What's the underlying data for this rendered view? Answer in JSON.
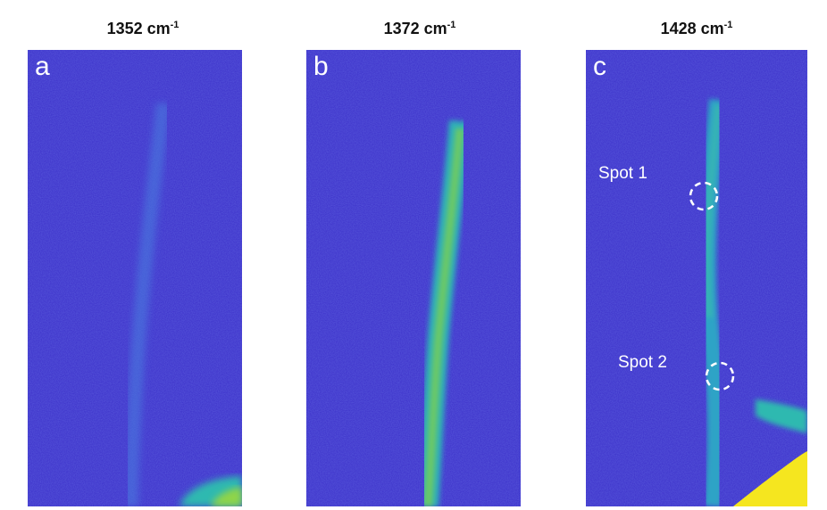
{
  "panels": [
    {
      "title_main": "1352 cm",
      "title_sup": "-1",
      "letter": "a"
    },
    {
      "title_main": "1372 cm",
      "title_sup": "-1",
      "letter": "b"
    },
    {
      "title_main": "1428 cm",
      "title_sup": "-1",
      "letter": "c"
    }
  ],
  "annotations": {
    "spot1": "Spot 1",
    "spot2": "Spot 2"
  },
  "colors": {
    "background": "#3b2fc9",
    "fiber_dim": "#4a78e0",
    "fiber_mid": "#2fb9b0",
    "fiber_hot": "#7fd34e",
    "saturated": "#f5e61f",
    "circle": "#ffffff"
  }
}
